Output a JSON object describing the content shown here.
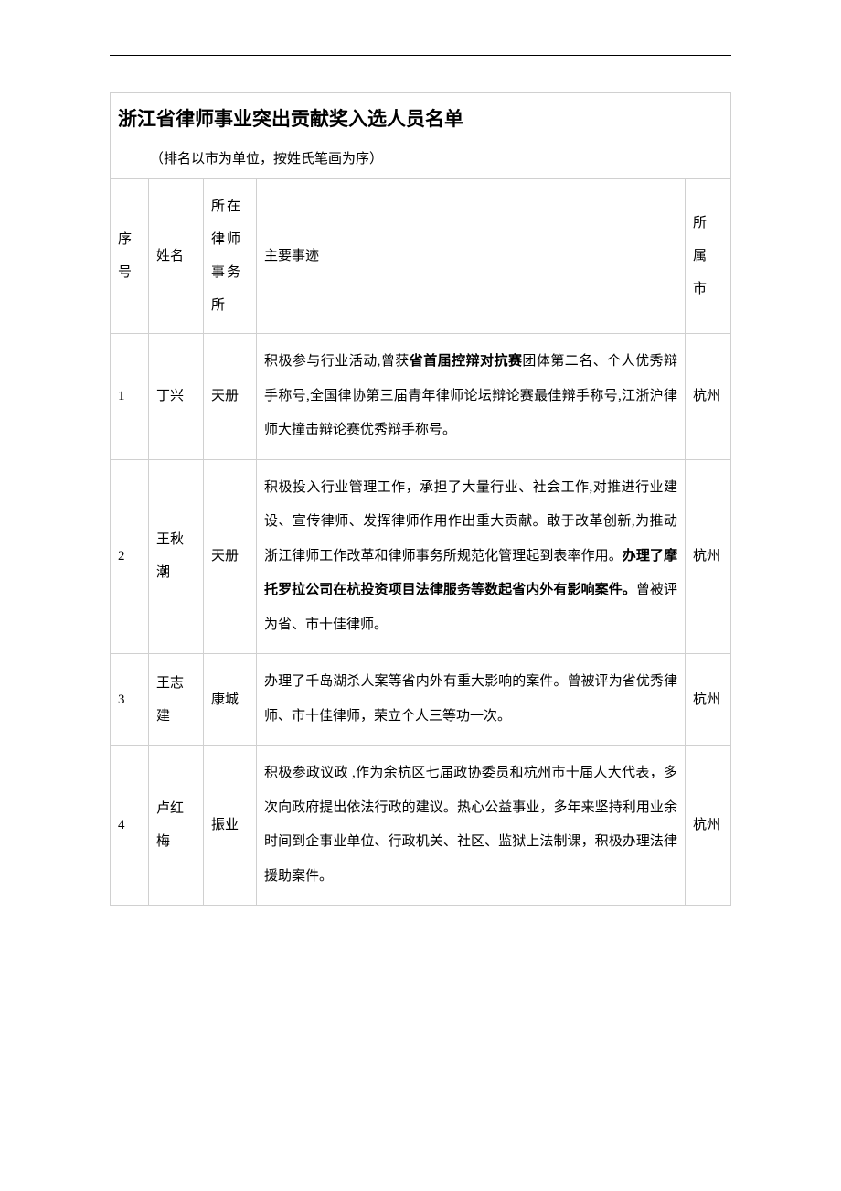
{
  "horizontalLine": true,
  "title": "浙江省律师事业突出贡献奖入选人员名单",
  "subtitle": "（排名以市为单位，按姓氏笔画为序）",
  "columns": {
    "seq": "序号",
    "name": "姓名",
    "firm": "所在律师事务所",
    "deeds": "主要事迹",
    "city": "所属市"
  },
  "rows": [
    {
      "seq": "1",
      "name": "丁兴",
      "firm": "天册",
      "deeds_parts": [
        {
          "text": "积极参与行业活动,曾获",
          "bold": false
        },
        {
          "text": "省首届控辩对抗赛",
          "bold": true
        },
        {
          "text": "团体第二名、个人优秀辩手称号,全国律协第三届青年律师论坛辩论赛最佳辩手称号,江浙沪律师大撞击辩论赛优秀辩手称号。",
          "bold": false
        }
      ],
      "city": "杭州"
    },
    {
      "seq": "2",
      "name": "王秋潮",
      "firm": "天册",
      "deeds_parts": [
        {
          "text": "积极投入行业管理工作，承担了大量行业、社会工作,对推进行业建设、宣传律师、发挥律师作用作出重大贡献。敢于改革创新,为推动浙江律师工作改革和律师事务所规范化管理起到表率作用。",
          "bold": false
        },
        {
          "text": "办理了摩托罗拉公司在杭投资项目法律服务等数起省内外有影响案件。",
          "bold": true
        },
        {
          "text": "曾被评为省、市十佳律师。",
          "bold": false
        }
      ],
      "city": "杭州"
    },
    {
      "seq": "3",
      "name": "王志建",
      "firm": "康城",
      "deeds_parts": [
        {
          "text": "办理了千岛湖杀人案等省内外有重大影响的案件。曾被评为省优秀律师、市十佳律师，荣立个人三等功一次。",
          "bold": false
        }
      ],
      "city": "杭州"
    },
    {
      "seq": "4",
      "name": "卢红梅",
      "firm": "振业",
      "deeds_parts": [
        {
          "text": "积极参政议政 ,作为余杭区七届政协委员和杭州市十届人大代表，多次向政府提出依法行政的建议。热心公益事业，多年来坚持利用业余时间到企事业单位、行政机关、社区、监狱上法制课，积极办理法律援助案件。",
          "bold": false
        }
      ],
      "city": "杭州"
    }
  ]
}
